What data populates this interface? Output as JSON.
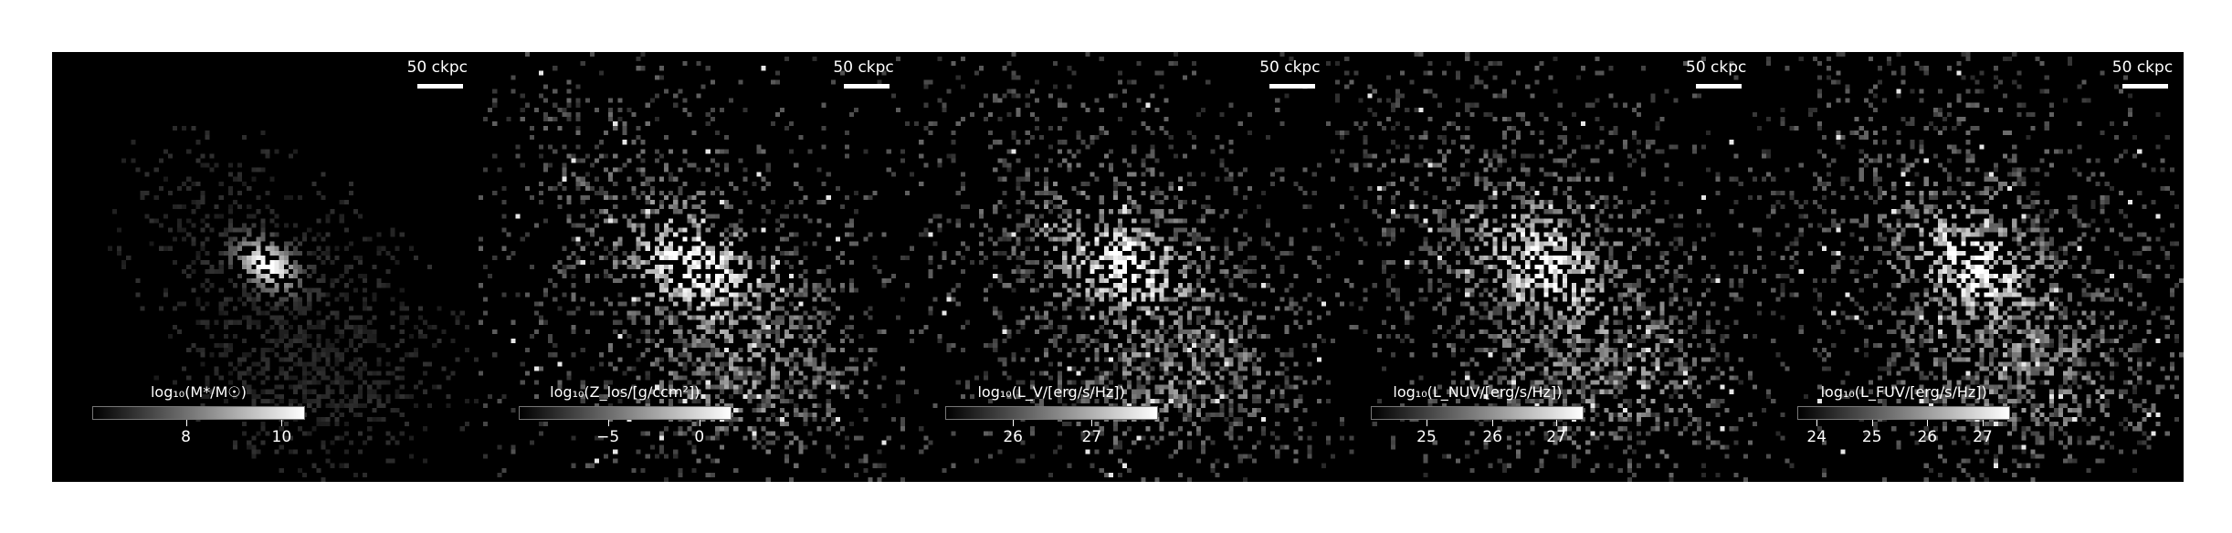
{
  "figure": {
    "panels": [
      {
        "id": "mass",
        "scale_bar_label": "50 ckpc",
        "colorbar_label": "log₁₀(M*/M☉)",
        "ticks": [
          {
            "label": "8",
            "frac": 0.44
          },
          {
            "label": "10",
            "frac": 0.89
          }
        ],
        "seed": 11,
        "spread": 0.55,
        "peak": 1.0
      },
      {
        "id": "metal",
        "scale_bar_label": "50 ckpc",
        "colorbar_label": "log₁₀(Z_los/[g/ccm²])",
        "ticks": [
          {
            "label": "−5",
            "frac": 0.42
          },
          {
            "label": "0",
            "frac": 0.85
          }
        ],
        "seed": 23,
        "spread": 1.0,
        "peak": 0.95
      },
      {
        "id": "lv",
        "scale_bar_label": "50 ckpc",
        "colorbar_label": "log₁₀(L_V/[erg/s/Hz])",
        "ticks": [
          {
            "label": "26",
            "frac": 0.32
          },
          {
            "label": "27",
            "frac": 0.69
          }
        ],
        "seed": 37,
        "spread": 1.0,
        "peak": 0.9
      },
      {
        "id": "lnuv",
        "scale_bar_label": "50 ckpc",
        "colorbar_label": "log₁₀(L_NUV/[erg/s/Hz])",
        "ticks": [
          {
            "label": "25",
            "frac": 0.26
          },
          {
            "label": "26",
            "frac": 0.57
          },
          {
            "label": "27",
            "frac": 0.87
          }
        ],
        "seed": 51,
        "spread": 1.05,
        "peak": 0.88
      },
      {
        "id": "lfuv",
        "scale_bar_label": "50 ckpc",
        "colorbar_label": "log₁₀(L_FUV/[erg/s/Hz])",
        "ticks": [
          {
            "label": "24",
            "frac": 0.09
          },
          {
            "label": "25",
            "frac": 0.35
          },
          {
            "label": "26",
            "frac": 0.61
          },
          {
            "label": "27",
            "frac": 0.87
          }
        ],
        "seed": 67,
        "spread": 1.05,
        "peak": 0.86
      }
    ],
    "colors": {
      "background": "#000000",
      "text": "#ffffff"
    }
  }
}
